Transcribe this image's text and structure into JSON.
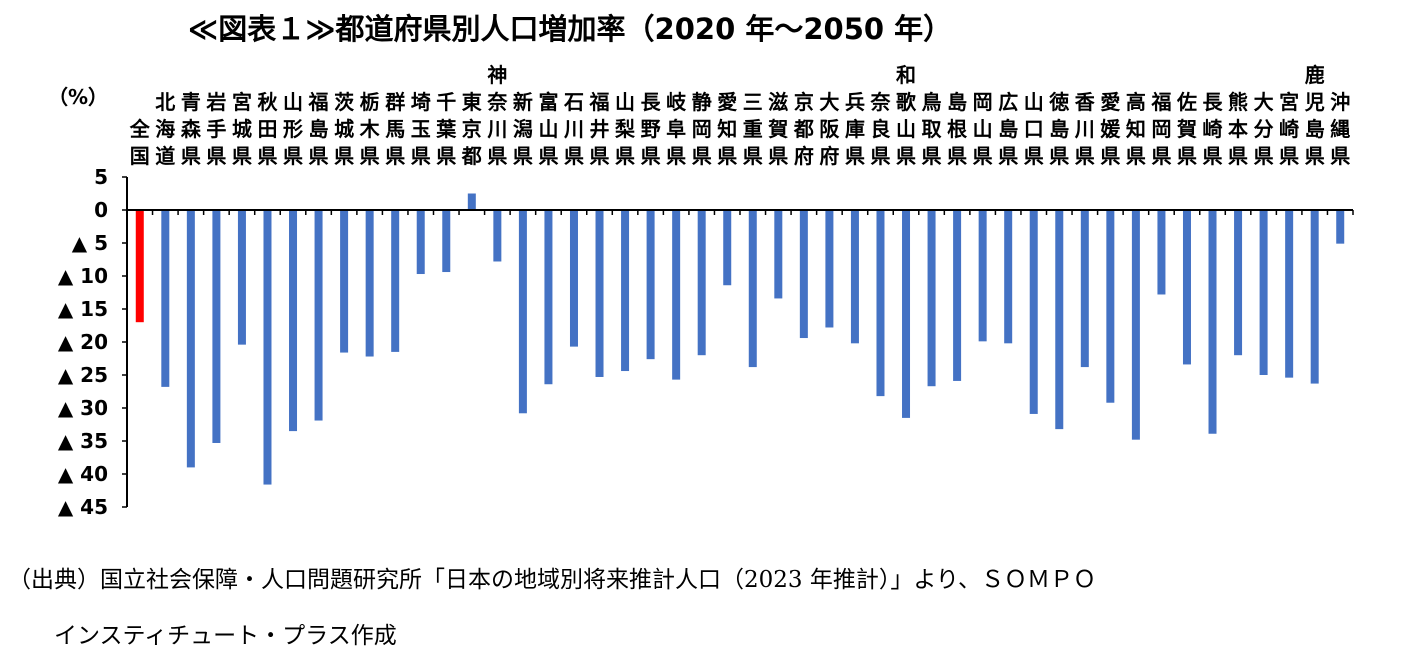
{
  "chart_data": {
    "type": "bar",
    "title": "≪図表１≫都道府県別人口増加率（2020 年～2050 年）",
    "ylabel": "（%）",
    "ylim": [
      -45,
      5
    ],
    "yticks": [
      {
        "value": 5,
        "label": "5"
      },
      {
        "value": 0,
        "label": "0"
      },
      {
        "value": -5,
        "label": "▲ 5"
      },
      {
        "value": -10,
        "label": "▲ 10"
      },
      {
        "value": -15,
        "label": "▲ 15"
      },
      {
        "value": -20,
        "label": "▲ 20"
      },
      {
        "value": -25,
        "label": "▲ 25"
      },
      {
        "value": -30,
        "label": "▲ 30"
      },
      {
        "value": -35,
        "label": "▲ 35"
      },
      {
        "value": -40,
        "label": "▲ 40"
      },
      {
        "value": -45,
        "label": "▲ 45"
      }
    ],
    "categories": [
      "全国",
      "北海道",
      "青森県",
      "岩手県",
      "宮城県",
      "秋田県",
      "山形県",
      "福島県",
      "茨城県",
      "栃木県",
      "群馬県",
      "埼玉県",
      "千葉県",
      "東京都",
      "神奈川県",
      "新潟県",
      "富山県",
      "石川県",
      "福井県",
      "山梨県",
      "長野県",
      "岐阜県",
      "静岡県",
      "愛知県",
      "三重県",
      "滋賀県",
      "京都府",
      "大阪府",
      "兵庫県",
      "奈良県",
      "和歌山県",
      "鳥取県",
      "島根県",
      "岡山県",
      "広島県",
      "山口県",
      "徳島県",
      "香川県",
      "愛媛県",
      "高知県",
      "福岡県",
      "佐賀県",
      "長崎県",
      "熊本県",
      "大分県",
      "宮崎県",
      "鹿児島県",
      "沖縄県"
    ],
    "values": [
      -17.0,
      -26.8,
      -39.0,
      -35.3,
      -20.4,
      -41.6,
      -33.5,
      -31.9,
      -21.6,
      -22.2,
      -21.5,
      -9.7,
      -9.4,
      2.5,
      -7.8,
      -30.8,
      -26.4,
      -20.7,
      -25.3,
      -24.4,
      -22.6,
      -25.7,
      -22.0,
      -11.4,
      -23.8,
      -13.4,
      -19.4,
      -17.8,
      -20.2,
      -28.2,
      -31.5,
      -26.7,
      -25.9,
      -19.9,
      -20.2,
      -30.9,
      -33.2,
      -23.8,
      -29.2,
      -34.8,
      -12.8,
      -23.4,
      -33.9,
      -22.0,
      -25.0,
      -25.4,
      -26.3,
      -5.1
    ],
    "colors": {
      "national": "#ff0000",
      "prefecture": "#4472c4"
    },
    "grid": false,
    "legend": "none"
  },
  "source_note": "（出典）国立社会保障・人口問題研究所「日本の地域別将来推計人口（2023 年推計）」より、ＳＯＭＰＯ\n　　インスティチュート・プラス作成"
}
